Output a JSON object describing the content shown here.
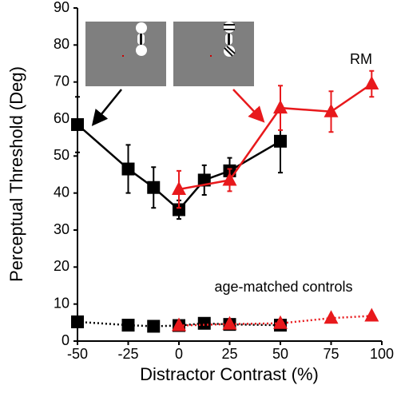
{
  "chart_data": {
    "type": "line",
    "xlabel": "Distractor Contrast (%)",
    "ylabel": "Perceptual Threshold (Deg)",
    "xlim": [
      -50,
      100
    ],
    "xticks": [
      -50,
      -25,
      0,
      25,
      50,
      75,
      100
    ],
    "ylim": [
      0,
      90
    ],
    "yticks": [
      0,
      10,
      20,
      30,
      40,
      50,
      60,
      70,
      80,
      90
    ],
    "annotations": [
      "RM",
      "age-matched controls"
    ],
    "series": [
      {
        "name": "RM black",
        "color": "#000000",
        "marker": "square",
        "dash": "solid",
        "x": [
          -50,
          -25,
          -12.5,
          0,
          12.5,
          25,
          50
        ],
        "values": [
          58.5,
          46.5,
          41.5,
          35.5,
          43.5,
          46,
          54
        ],
        "errors": [
          7.5,
          6.5,
          5.5,
          2.5,
          4,
          3.5,
          8.5
        ]
      },
      {
        "name": "RM red",
        "color": "#e8191c",
        "marker": "triangle",
        "dash": "solid",
        "x": [
          0,
          25,
          50,
          75,
          95
        ],
        "values": [
          41,
          43.5,
          63,
          62,
          69.5
        ],
        "errors": [
          5,
          3,
          6,
          5.5,
          3.5
        ]
      },
      {
        "name": "controls black",
        "color": "#000000",
        "marker": "square",
        "dash": "dotted",
        "x": [
          -50,
          -25,
          -12.5,
          0,
          12.5,
          25,
          50
        ],
        "values": [
          5.2,
          4.3,
          4,
          4.2,
          4.8,
          4.5,
          4.3
        ]
      },
      {
        "name": "controls red",
        "color": "#e8191c",
        "marker": "triangle",
        "dash": "dotted",
        "x": [
          0,
          25,
          50,
          75,
          95
        ],
        "values": [
          4.2,
          4.6,
          4.8,
          6.2,
          6.8
        ]
      }
    ]
  }
}
